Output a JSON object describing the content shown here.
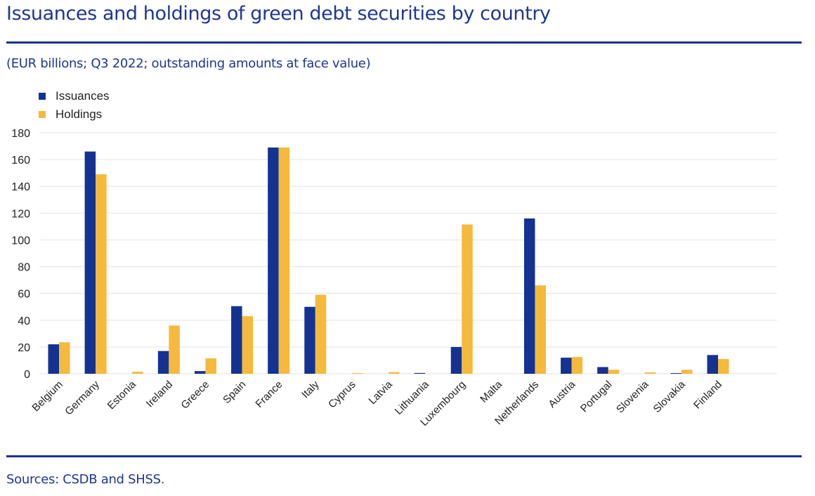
{
  "header": {
    "title": "Issuances and holdings of green debt securities by country",
    "subtitle": "(EUR billions; Q3 2022; outstanding amounts at face value)"
  },
  "footer": {
    "source": "Sources: CSDB and SHSS."
  },
  "colors": {
    "issuances": "#143291",
    "holdings": "#f5b93c",
    "grid": "#ebebeb",
    "accent": "#143297"
  },
  "chart_data": {
    "type": "bar",
    "title": "Issuances and holdings of green debt securities by country",
    "subtitle": "(EUR billions; Q3 2022; outstanding amounts at face value)",
    "xlabel": "",
    "ylabel": "",
    "ylim": [
      0,
      180
    ],
    "yticks": [
      0,
      20,
      40,
      60,
      80,
      100,
      120,
      140,
      160,
      180
    ],
    "grid": true,
    "legend_position": "top-left",
    "categories": [
      "Belgium",
      "Germany",
      "Estonia",
      "Ireland",
      "Greece",
      "Spain",
      "France",
      "Italy",
      "Cyprus",
      "Latvia",
      "Lithuania",
      "Luxembourg",
      "Malta",
      "Netherlands",
      "Austria",
      "Portugal",
      "Slovenia",
      "Slovakia",
      "Finland"
    ],
    "series": [
      {
        "name": "Issuances",
        "values": [
          22,
          166,
          0,
          17,
          2,
          50.5,
          169,
          50,
          0,
          0,
          0.6,
          20,
          0,
          116,
          12,
          5,
          0,
          0.5,
          14
        ]
      },
      {
        "name": "Holdings",
        "values": [
          23.5,
          149,
          1.5,
          36,
          11.5,
          43,
          169,
          59,
          0.5,
          1.2,
          0,
          111.5,
          0,
          66,
          12.5,
          3,
          1,
          3,
          11
        ]
      }
    ]
  }
}
